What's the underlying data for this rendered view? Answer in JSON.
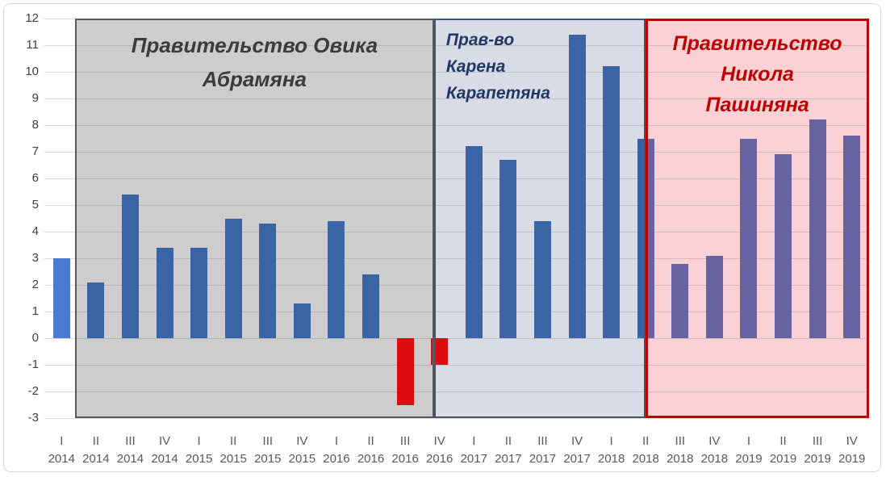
{
  "chart_data": {
    "type": "bar",
    "title": "",
    "xlabel": "",
    "ylabel": "",
    "ylim": [
      -3,
      12
    ],
    "ytick_step": 1,
    "grid": "horizontal",
    "legend": "none",
    "categories": [
      {
        "quarter": "I",
        "year": "2014"
      },
      {
        "quarter": "II",
        "year": "2014"
      },
      {
        "quarter": "III",
        "year": "2014"
      },
      {
        "quarter": "IV",
        "year": "2014"
      },
      {
        "quarter": "I",
        "year": "2015"
      },
      {
        "quarter": "II",
        "year": "2015"
      },
      {
        "quarter": "III",
        "year": "2015"
      },
      {
        "quarter": "IV",
        "year": "2015"
      },
      {
        "quarter": "I",
        "year": "2016"
      },
      {
        "quarter": "II",
        "year": "2016"
      },
      {
        "quarter": "III",
        "year": "2016"
      },
      {
        "quarter": "IV",
        "year": "2016"
      },
      {
        "quarter": "I",
        "year": "2017"
      },
      {
        "quarter": "II",
        "year": "2017"
      },
      {
        "quarter": "III",
        "year": "2017"
      },
      {
        "quarter": "IV",
        "year": "2017"
      },
      {
        "quarter": "I",
        "year": "2018"
      },
      {
        "quarter": "II",
        "year": "2018"
      },
      {
        "quarter": "III",
        "year": "2018"
      },
      {
        "quarter": "IV",
        "year": "2018"
      },
      {
        "quarter": "I",
        "year": "2019"
      },
      {
        "quarter": "II",
        "year": "2019"
      },
      {
        "quarter": "III",
        "year": "2019"
      },
      {
        "quarter": "IV",
        "year": "2019"
      }
    ],
    "values": [
      3.0,
      2.1,
      5.4,
      3.4,
      3.4,
      4.5,
      4.3,
      1.3,
      4.4,
      2.4,
      -2.5,
      -1.0,
      7.2,
      6.7,
      4.4,
      11.4,
      10.2,
      7.5,
      2.8,
      3.1,
      7.5,
      6.9,
      8.2,
      7.6
    ],
    "bar_styles": [
      "light_blue",
      "blue",
      "blue",
      "blue",
      "blue",
      "blue",
      "blue",
      "blue",
      "blue",
      "blue",
      "red",
      "red",
      "blue",
      "blue",
      "blue",
      "blue",
      "blue",
      "blue_purple_split",
      "purple",
      "purple",
      "purple",
      "purple",
      "purple",
      "purple"
    ],
    "colors": {
      "light_blue": "#4A7BD0",
      "blue": "#3A64A5",
      "red": "#DD0B10",
      "purple": "#6863A0",
      "y_axis_text": "#404040",
      "x_axis_text": "#595959",
      "gridline": "#D9D9D9"
    },
    "sections": [
      {
        "id": "abrahamyan",
        "label": "Правительство Овика\nАбрамяна",
        "from_cat": 0.89,
        "to_cat": 11.34,
        "bg": "#CDCDCD",
        "border": "#595959",
        "text": "#3B3B3B"
      },
      {
        "id": "karapetyan",
        "label": "Прав-во\nКарена\nКарапетяна",
        "from_cat": 11.34,
        "to_cat": 17.5,
        "bg": "#D9DCE6",
        "border": "#44546A",
        "text": "#1F3864"
      },
      {
        "id": "pashinyan",
        "label": "Правительство\nНикола\nПашиняна",
        "from_cat": 17.5,
        "to_cat": 24,
        "bg": "#FAD1D4",
        "border": "#C00000",
        "text": "#C00000"
      }
    ]
  }
}
